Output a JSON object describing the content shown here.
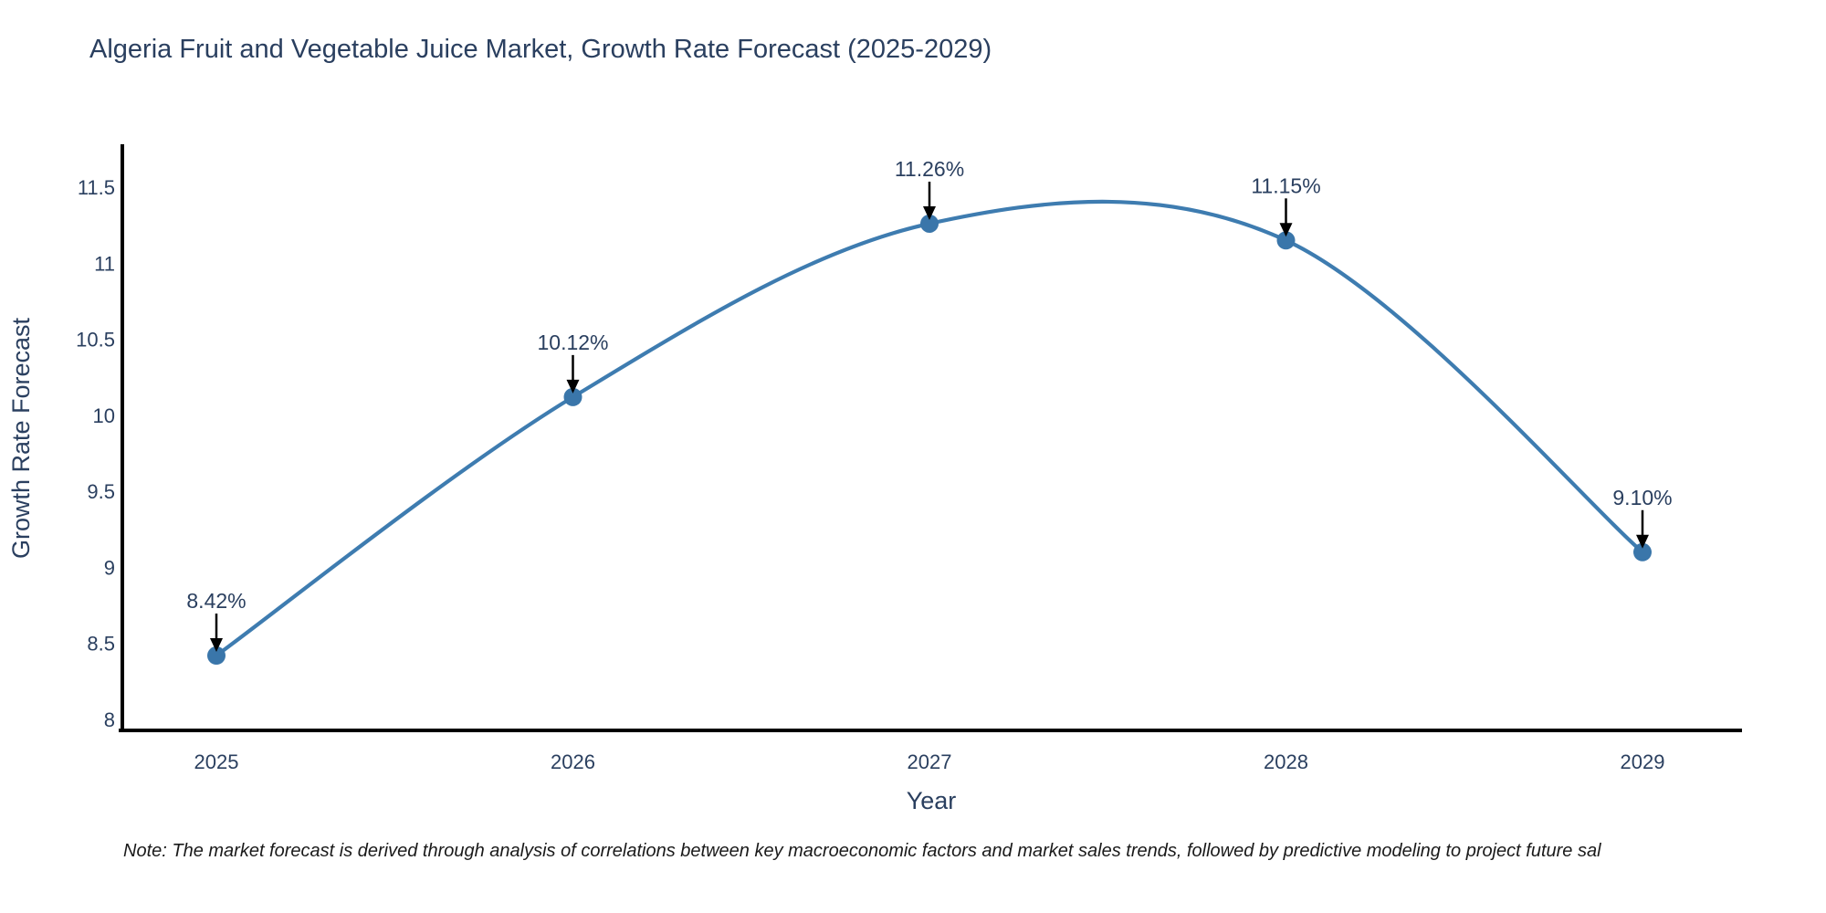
{
  "title": "Algeria Fruit and Vegetable Juice Market, Growth Rate Forecast (2025-2029)",
  "note": "Note: The market forecast is derived through analysis of correlations between key macroeconomic factors and market sales trends, followed by predictive modeling to project future sal",
  "chart_data": {
    "type": "line",
    "line_shape": "spline",
    "title": "Algeria Fruit and Vegetable Juice Market, Growth Rate Forecast (2025-2029)",
    "xlabel": "Year",
    "ylabel": "Growth Rate Forecast",
    "x": [
      2025,
      2026,
      2027,
      2028,
      2029
    ],
    "series": [
      {
        "name": "Growth Rate Forecast",
        "values": [
          8.42,
          10.12,
          11.26,
          11.15,
          9.1
        ]
      }
    ],
    "point_labels": [
      "8.42%",
      "10.12%",
      "11.26%",
      "11.15%",
      "9.10%"
    ],
    "yticks": [
      8,
      8.5,
      9,
      9.5,
      10,
      10.5,
      11,
      11.5
    ],
    "ylim": [
      7.93,
      11.84
    ],
    "grid": false,
    "legend": false,
    "line_color": "#3e7cb0",
    "marker_color": "#3a76aa",
    "axis_color": "#000000",
    "text_color": "#2a3f5f",
    "arrow_color": "#000000",
    "background_color": "#ffffff"
  }
}
